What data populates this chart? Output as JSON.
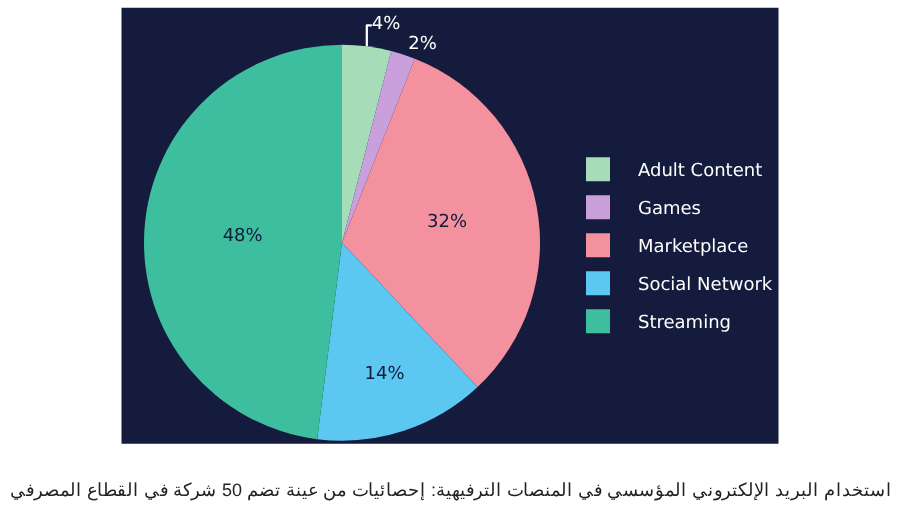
{
  "chart_data": {
    "type": "pie",
    "categories": [
      "Adult Content",
      "Games",
      "Marketplace",
      "Social Network",
      "Streaming"
    ],
    "values": [
      4,
      2,
      32,
      14,
      48
    ],
    "colors": [
      "#a6dcb8",
      "#c9a0dc",
      "#f4919f",
      "#5cc8f2",
      "#3dbf9f"
    ],
    "value_labels": [
      "4%",
      "2%",
      "32%",
      "14%",
      "48%"
    ],
    "legend": "right",
    "annotations": [
      "استخدام البريد الإلكتروني المؤسسي في المنصات الترفيهية: إحصائيات من عينة تضم 50 شركة في القطاع المصرفي"
    ]
  }
}
